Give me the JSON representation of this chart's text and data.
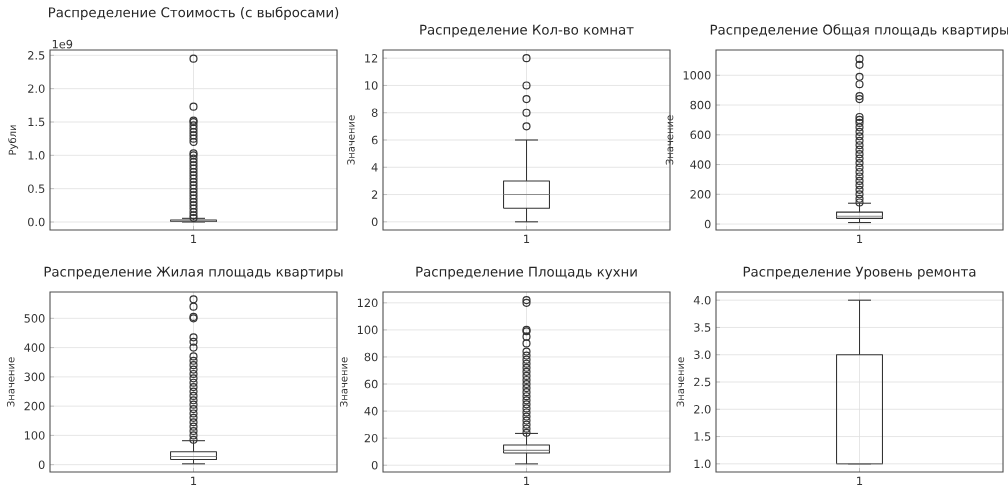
{
  "chart_data": [
    {
      "type": "box",
      "title": "Распределение Стоимость (с выбросами)",
      "ylabel": "Рубли",
      "categories": [
        "1"
      ],
      "annotations": [
        "1e9"
      ],
      "ylim": [
        -0.12,
        2.58
      ],
      "yticks": [
        {
          "value": 0,
          "label": "0.0"
        },
        {
          "value": 0.5,
          "label": "0.5"
        },
        {
          "value": 1,
          "label": "1.0"
        },
        {
          "value": 1.5,
          "label": "1.5"
        },
        {
          "value": 2,
          "label": "2.0"
        },
        {
          "value": 2.5,
          "label": "2.5"
        }
      ],
      "grid": true,
      "boxes": [
        {
          "low": 0,
          "q1": 0.008,
          "median": 0.015,
          "q3": 0.03,
          "high": 0.055,
          "outliers": [
            0.06,
            0.1,
            0.15,
            0.2,
            0.25,
            0.3,
            0.35,
            0.4,
            0.45,
            0.5,
            0.55,
            0.6,
            0.65,
            0.7,
            0.75,
            0.8,
            0.85,
            0.9,
            0.95,
            1.0,
            1.03,
            1.2,
            1.25,
            1.3,
            1.35,
            1.4,
            1.45,
            1.5,
            1.52,
            1.73,
            2.45
          ]
        }
      ]
    },
    {
      "type": "box",
      "title": "Распределение Кол-во комнат",
      "ylabel": "Значение",
      "categories": [
        "1"
      ],
      "ylim": [
        -0.6,
        12.6
      ],
      "yticks": [
        0,
        2,
        4,
        6,
        8,
        10,
        12
      ],
      "grid": true,
      "boxes": [
        {
          "low": 0,
          "q1": 1,
          "median": 2,
          "q3": 3,
          "high": 6,
          "outliers": [
            7,
            8,
            9,
            10,
            12
          ]
        }
      ]
    },
    {
      "type": "box",
      "title": "Распределение Общая площадь квартиры",
      "ylabel": "Значение",
      "categories": [
        "1"
      ],
      "ylim": [
        -40,
        1170
      ],
      "yticks": [
        0,
        200,
        400,
        600,
        800,
        1000
      ],
      "grid": true,
      "boxes": [
        {
          "low": 10,
          "q1": 38,
          "median": 52,
          "q3": 80,
          "high": 140,
          "outliers": [
            145,
            170,
            200,
            230,
            260,
            290,
            320,
            350,
            380,
            410,
            440,
            470,
            500,
            530,
            560,
            590,
            620,
            650,
            680,
            700,
            720,
            840,
            860,
            940,
            990,
            1070,
            1110
          ]
        }
      ]
    },
    {
      "type": "box",
      "title": "Распределение Жилая площадь квартиры",
      "ylabel": "Значение",
      "categories": [
        "1"
      ],
      "ylim": [
        -25,
        590
      ],
      "yticks": [
        0,
        100,
        200,
        300,
        400,
        500
      ],
      "grid": true,
      "boxes": [
        {
          "low": 3,
          "q1": 18,
          "median": 28,
          "q3": 44,
          "high": 82,
          "outliers": [
            85,
            100,
            115,
            130,
            145,
            160,
            175,
            190,
            205,
            220,
            235,
            250,
            265,
            280,
            295,
            310,
            325,
            340,
            355,
            370,
            400,
            420,
            435,
            500,
            505,
            540,
            565
          ]
        }
      ]
    },
    {
      "type": "box",
      "title": "Распределение Площадь кухни",
      "ylabel": "Значение",
      "categories": [
        "1"
      ],
      "ylim": [
        -5,
        128
      ],
      "yticks": [
        0,
        20,
        40,
        60,
        80,
        100,
        120
      ],
      "grid": true,
      "boxes": [
        {
          "low": 1,
          "q1": 9,
          "median": 11,
          "q3": 15,
          "high": 23.5,
          "outliers": [
            24,
            27,
            30,
            33,
            36,
            39,
            42,
            45,
            48,
            51,
            54,
            57,
            60,
            63,
            66,
            69,
            72,
            75,
            78,
            81,
            84,
            90,
            95,
            99,
            100,
            120,
            122
          ]
        }
      ]
    },
    {
      "type": "box",
      "title": "Распределение Уровень ремонта",
      "ylabel": "Значение",
      "categories": [
        "1"
      ],
      "ylim": [
        0.85,
        4.15
      ],
      "yticks": [
        {
          "value": 1,
          "label": "1.0"
        },
        {
          "value": 1.5,
          "label": "1.5"
        },
        {
          "value": 2,
          "label": "2.0"
        },
        {
          "value": 2.5,
          "label": "2.5"
        },
        {
          "value": 3,
          "label": "3.0"
        },
        {
          "value": 3.5,
          "label": "3.5"
        },
        {
          "value": 4,
          "label": "4.0"
        }
      ],
      "grid": true,
      "boxes": [
        {
          "low": 1,
          "q1": 1,
          "median": 1,
          "q3": 3,
          "high": 4
        }
      ]
    }
  ]
}
